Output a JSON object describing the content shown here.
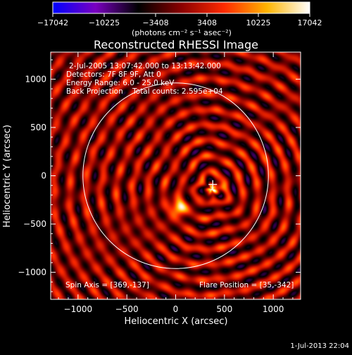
{
  "chart_data": {
    "type": "heatmap",
    "title": "Reconstructed RHESSI Image",
    "xlabel": "Heliocentric X (arcsec)",
    "ylabel": "Heliocentric Y (arcsec)",
    "xlim": [
      -1280,
      1280
    ],
    "ylim": [
      -1280,
      1280
    ],
    "x_ticks": [
      -1000,
      -500,
      0,
      500,
      1000
    ],
    "y_ticks": [
      -1000,
      -500,
      0,
      500,
      1000
    ],
    "x_tick_labels": [
      "−1000",
      "−500",
      "0",
      "500",
      "1000"
    ],
    "y_tick_labels": [
      "−1000",
      "−500",
      "0",
      "500",
      "1000"
    ],
    "colorbar": {
      "min": -17042,
      "max": 17042,
      "tick_values": [
        -17042,
        -10225,
        -3408,
        3408,
        10225,
        17042
      ],
      "tick_labels": [
        "−17042",
        "−10225",
        "−3408",
        "3408",
        "10225",
        "17042"
      ],
      "unit_label": "(photons cm⁻² s⁻¹ asec⁻²)",
      "colors": [
        "#0000ff",
        "#7a00c0",
        "#000000",
        "#8a0000",
        "#ff2a00",
        "#ffb400",
        "#ffffff"
      ]
    },
    "annotations": {
      "time_range": "2-Jul-2005 13:07:42.000 to 13:13:42.000",
      "detectors": "Detectors: 7F 8F 9F, Att 0",
      "energy_range": "Energy Range: 6.0 - 25.0 keV",
      "method_counts": "Back Projection    Total counts: 2.595e+04",
      "spin_axis": "Spin Axis = [369,-137]",
      "flare_position": "Flare Position = [35,-342]"
    },
    "solar_disk": {
      "center": [
        0,
        0
      ],
      "radius": 950,
      "color": "#ffffff"
    },
    "flare_marker": {
      "x": 380,
      "y": -90,
      "symbol": "+"
    },
    "spin_axis_point": [
      369,
      -137
    ],
    "flare_position_point": [
      35,
      -342
    ],
    "image_center": [
      369,
      -137
    ],
    "ring_spacing": 160,
    "sources": [
      {
        "x": 30,
        "y": -330,
        "sigma": 55,
        "amplitude": 17042
      },
      {
        "x": 400,
        "y": -130,
        "sigma": 45,
        "amplitude": 13000
      }
    ]
  },
  "footer": {
    "timestamp": "1-Jul-2013 22:04"
  }
}
